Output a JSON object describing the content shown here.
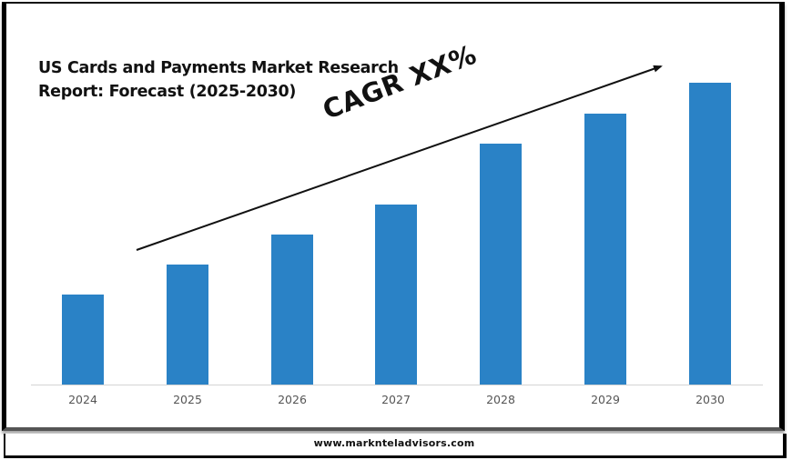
{
  "title": {
    "line1": "US Cards and Payments Market Research",
    "line2": "Report: Forecast (2025-2030)"
  },
  "annotation": {
    "cagr_label": "CAGR XX%",
    "arrow": "trend-arrow-up-right"
  },
  "footer": {
    "url": "www.marknteladvisors.com"
  },
  "colors": {
    "bar": "#2a82c6",
    "baseline": "#d4d4d4",
    "text": "#111111",
    "axis_label": "#555555"
  },
  "chart_data": {
    "type": "bar",
    "title": "US Cards and Payments Market Research Report: Forecast (2025-2030)",
    "xlabel": "",
    "ylabel": "",
    "categories": [
      "2024",
      "2025",
      "2026",
      "2027",
      "2028",
      "2029",
      "2030"
    ],
    "values": [
      99,
      132,
      165,
      198,
      265,
      298,
      332
    ],
    "value_units": "relative bar height (px, no y-axis shown)",
    "ylim": [
      0,
      340
    ],
    "grid": false,
    "legend": null,
    "annotations": [
      "CAGR XX%"
    ]
  }
}
